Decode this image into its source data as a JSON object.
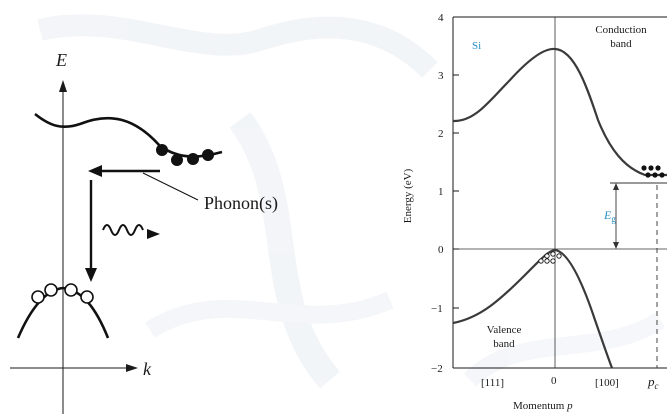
{
  "colors": {
    "background": "#ffffff",
    "ink": "#1a1a1a",
    "accent_label": "#2a8fc6",
    "watermark": "#e9edf3"
  },
  "left_diagram": {
    "y_axis_label": "E",
    "x_axis_label": "k",
    "phonon_label": "Phonon(s)"
  },
  "right_chart": {
    "material_label": "Si",
    "conduction_label_line1": "Conduction",
    "conduction_label_line2": "band",
    "valence_label_line1": "Valence",
    "valence_label_line2": "band",
    "gap_label_main": "E",
    "gap_label_sub": "g",
    "ylabel": "Energy (eV)",
    "xlabel": "Momentum p",
    "y_ticks": [
      "4",
      "3",
      "2",
      "1",
      "0",
      "−1",
      "−2"
    ],
    "x_tick_labels": [
      "[111]",
      "0",
      "[100]"
    ],
    "pc_label_main": "p",
    "pc_label_sub": "c"
  },
  "chart_data": {
    "type": "line",
    "title": "",
    "xlabel": "Momentum p",
    "ylabel": "Energy (eV)",
    "ylim": [
      -2,
      4
    ],
    "y_ticks": [
      4,
      3,
      2,
      1,
      0,
      -1,
      -2
    ],
    "x_ticks": [
      "[111]",
      "0",
      "[100]"
    ],
    "series": [
      {
        "name": "Conduction band",
        "x": [
          -1.0,
          -0.8,
          -0.6,
          -0.4,
          -0.2,
          0.0,
          0.15,
          0.3,
          0.5,
          0.7,
          0.85,
          0.95
        ],
        "values": [
          2.2,
          2.35,
          2.85,
          3.2,
          3.35,
          3.45,
          3.2,
          2.3,
          1.7,
          1.3,
          1.15,
          1.15
        ]
      },
      {
        "name": "Valence band",
        "x": [
          -1.0,
          -0.8,
          -0.6,
          -0.4,
          -0.2,
          0.0,
          0.15,
          0.3,
          0.45
        ],
        "values": [
          -1.25,
          -1.0,
          -0.7,
          -0.4,
          -0.1,
          0.0,
          -0.5,
          -1.3,
          -2.0
        ]
      }
    ],
    "annotations": [
      "Si",
      "Conduction band",
      "Valence band",
      "Eg",
      "pc"
    ],
    "grid": false
  }
}
